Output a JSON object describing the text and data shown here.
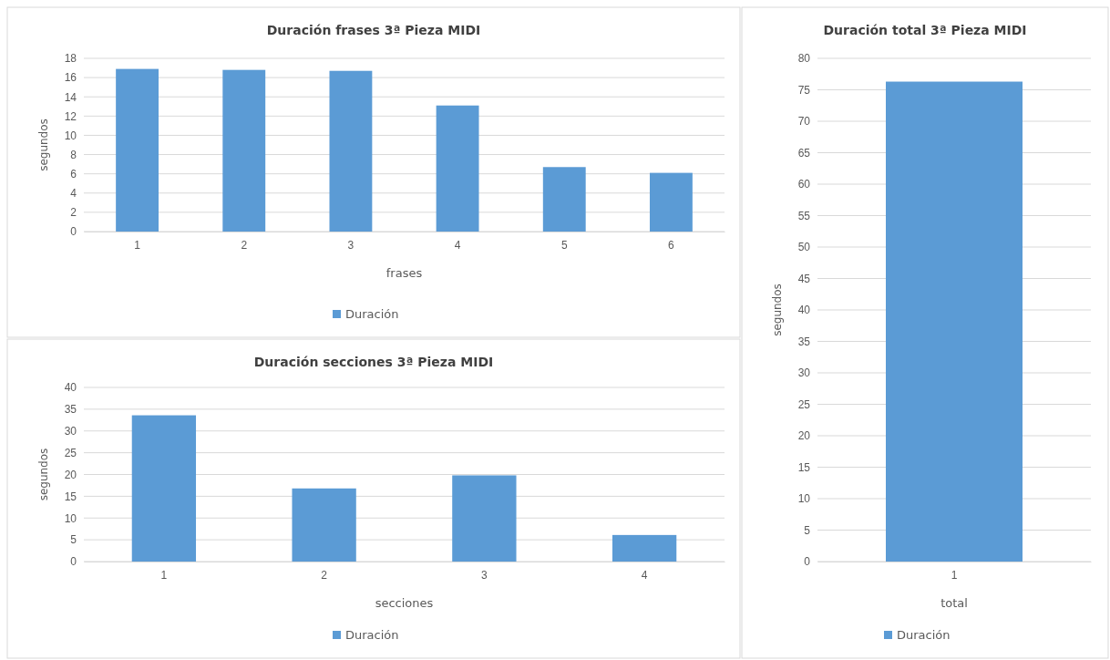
{
  "chart_data": [
    {
      "type": "bar",
      "title": "Duración frases 3ª Pieza MIDI",
      "xlabel": "frases",
      "ylabel": "segundos",
      "categories": [
        "1",
        "2",
        "3",
        "4",
        "5",
        "6"
      ],
      "series": [
        {
          "name": "Duración",
          "color": "#5b9bd5",
          "values": [
            16.9,
            16.8,
            16.7,
            13.1,
            6.7,
            6.1
          ]
        }
      ],
      "ylim": [
        0,
        18
      ],
      "yticks": [
        0,
        2,
        4,
        6,
        8,
        10,
        12,
        14,
        16,
        18
      ],
      "grid": "y",
      "legend": "bottom"
    },
    {
      "type": "bar",
      "title": "Duración secciones 3ª Pieza MIDI",
      "xlabel": "secciones",
      "ylabel": "segundos",
      "categories": [
        "1",
        "2",
        "3",
        "4"
      ],
      "series": [
        {
          "name": "Duración",
          "color": "#5b9bd5",
          "values": [
            33.6,
            16.8,
            19.8,
            6.1
          ]
        }
      ],
      "ylim": [
        0,
        40
      ],
      "yticks": [
        0,
        5,
        10,
        15,
        20,
        25,
        30,
        35,
        40
      ],
      "grid": "y",
      "legend": "bottom"
    },
    {
      "type": "bar",
      "title": "Duración total 3ª Pieza MIDI",
      "xlabel": "total",
      "ylabel": "segundos",
      "categories": [
        "1"
      ],
      "series": [
        {
          "name": "Duración",
          "color": "#5b9bd5",
          "values": [
            76.3
          ]
        }
      ],
      "ylim": [
        0,
        80
      ],
      "yticks": [
        0,
        5,
        10,
        15,
        20,
        25,
        30,
        35,
        40,
        45,
        50,
        55,
        60,
        65,
        70,
        75,
        80
      ],
      "grid": "y",
      "legend": "bottom"
    }
  ]
}
